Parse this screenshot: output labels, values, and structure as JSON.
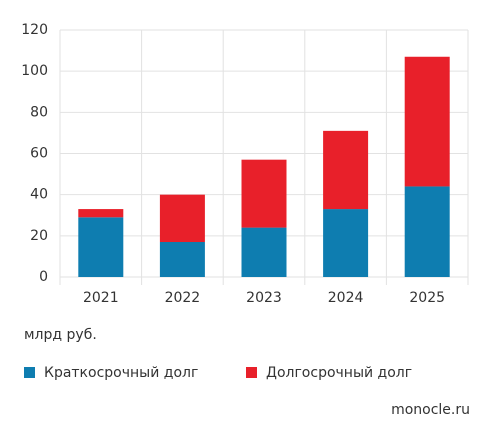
{
  "chart_data": {
    "type": "bar",
    "stacked": true,
    "categories": [
      "2021",
      "2022",
      "2023",
      "2024",
      "2025"
    ],
    "series": [
      {
        "name": "Краткосрочный долг",
        "color": "#0e7db0",
        "values": [
          29,
          17,
          24,
          33,
          44
        ]
      },
      {
        "name": "Долгосрочный долг",
        "color": "#e8202a",
        "values": [
          4,
          23,
          33,
          38,
          63
        ]
      }
    ],
    "ylim": [
      0,
      120
    ],
    "yticks": [
      0,
      20,
      40,
      60,
      80,
      100,
      120
    ],
    "grid": true,
    "y_label": "млрд руб.",
    "source": "monocle.ru"
  }
}
